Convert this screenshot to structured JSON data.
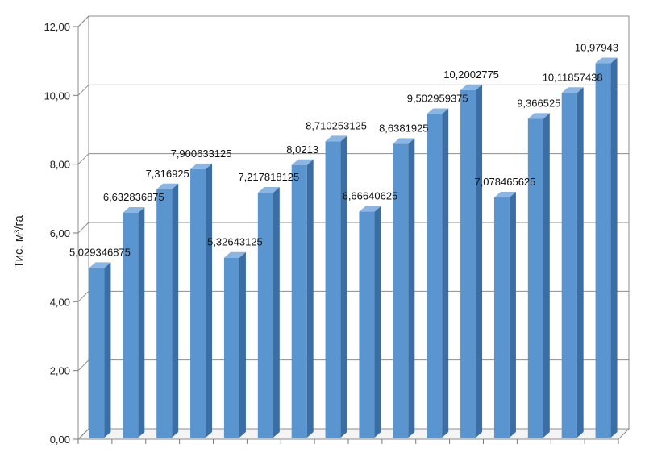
{
  "chart_data": {
    "type": "bar",
    "ylabel": "Тис. м³/га",
    "ylim": [
      0,
      12
    ],
    "ytick_step": 2,
    "ytick_labels": [
      "0,00",
      "2,00",
      "4,00",
      "6,00",
      "8,00",
      "10,00",
      "12,00"
    ],
    "grid": true,
    "three_d": true,
    "values": [
      5.029346875,
      6.632836875,
      7.316925,
      7.900633125,
      5.32643125,
      7.217818125,
      8.0213,
      8.710253125,
      6.66640625,
      8.6381925,
      9.502959375,
      10.2002775,
      7.078465625,
      9.366525,
      10.11857438,
      10.97943
    ],
    "data_labels": [
      "5,029346875",
      "6,632836875",
      "7,316925",
      "7,900633125",
      "5,32643125",
      "7,217818125",
      "8,0213",
      "8,710253125",
      "6,66640625",
      "8,6381925",
      "9,502959375",
      "10,2002775",
      "7,078465625",
      "9,366525",
      "10,11857438",
      "10,97943"
    ],
    "colors": {
      "bar_front": "#5b95d0",
      "bar_side": "#3a6ea5",
      "bar_top": "#8ab6e6",
      "grid": "#8c8c8c",
      "axis": "#7a7a7a"
    }
  }
}
